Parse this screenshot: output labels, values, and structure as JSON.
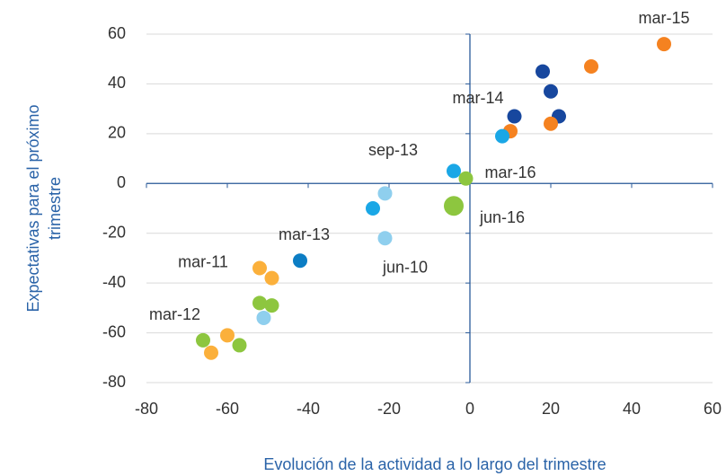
{
  "chart_data": {
    "type": "scatter",
    "xlabel": "Evolución  de la actividad  a lo largo del trimestre",
    "ylabel": [
      "Expectativas para el próximo",
      "trimestre"
    ],
    "xlim": [
      -80,
      60
    ],
    "xticks": [
      -80,
      -60,
      -40,
      -20,
      0,
      20,
      40,
      60
    ],
    "ylim": [
      -80,
      60
    ],
    "yticks": [
      -80,
      -60,
      -40,
      -20,
      0,
      20,
      40,
      60
    ],
    "grid": true,
    "points": [
      {
        "x": 48,
        "y": 56,
        "color": "#f58220"
      },
      {
        "x": 30,
        "y": 47,
        "color": "#f58220"
      },
      {
        "x": 18,
        "y": 45,
        "color": "#17479e"
      },
      {
        "x": 20,
        "y": 37,
        "color": "#17479e"
      },
      {
        "x": 11,
        "y": 27,
        "color": "#17479e"
      },
      {
        "x": 22,
        "y": 27,
        "color": "#17479e"
      },
      {
        "x": 20,
        "y": 24,
        "color": "#f58220"
      },
      {
        "x": 10,
        "y": 21,
        "color": "#f58220"
      },
      {
        "x": 8,
        "y": 19,
        "color": "#1aa7e6"
      },
      {
        "x": -4,
        "y": 5,
        "color": "#1aa7e6"
      },
      {
        "x": -1,
        "y": 2,
        "color": "#8dc63f"
      },
      {
        "x": -4,
        "y": -9,
        "color": "#8dc63f",
        "highlight": true
      },
      {
        "x": -21,
        "y": -4,
        "color": "#8fcfee"
      },
      {
        "x": -24,
        "y": -10,
        "color": "#1aa7e6"
      },
      {
        "x": -21,
        "y": -22,
        "color": "#8fcfee"
      },
      {
        "x": -42,
        "y": -31,
        "color": "#0c7dc4"
      },
      {
        "x": -52,
        "y": -34,
        "color": "#fbb03b"
      },
      {
        "x": -49,
        "y": -38,
        "color": "#fbb03b"
      },
      {
        "x": -52,
        "y": -48,
        "color": "#8dc63f"
      },
      {
        "x": -49,
        "y": -49,
        "color": "#8dc63f"
      },
      {
        "x": -51,
        "y": -54,
        "color": "#8fcfee"
      },
      {
        "x": -60,
        "y": -61,
        "color": "#fbb03b"
      },
      {
        "x": -66,
        "y": -63,
        "color": "#8dc63f"
      },
      {
        "x": -57,
        "y": -65,
        "color": "#8dc63f"
      },
      {
        "x": -64,
        "y": -68,
        "color": "#fbb03b"
      }
    ],
    "annotations": [
      {
        "text": "mar-15",
        "x": 48,
        "y": 66
      },
      {
        "text": "mar-14",
        "x": 2,
        "y": 34
      },
      {
        "text": "sep-13",
        "x": -19,
        "y": 13
      },
      {
        "text": "mar-16",
        "x": 10,
        "y": 4
      },
      {
        "text": "jun-16",
        "x": 8,
        "y": -14
      },
      {
        "text": "mar-13",
        "x": -41,
        "y": -21
      },
      {
        "text": "jun-10",
        "x": -16,
        "y": -34
      },
      {
        "text": "mar-11",
        "x": -66,
        "y": -32
      },
      {
        "text": "mar-12",
        "x": -73,
        "y": -53
      }
    ]
  }
}
